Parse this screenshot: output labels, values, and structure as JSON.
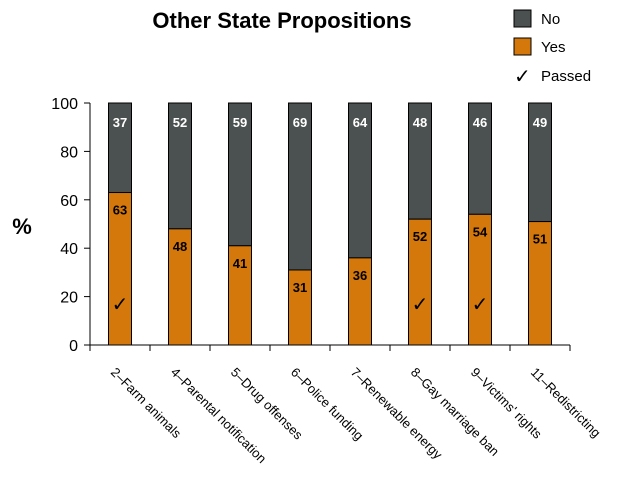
{
  "chart_data": {
    "type": "bar",
    "stacked": true,
    "title": "Other State Propositions",
    "ylabel": "%",
    "xlabel": "",
    "ylim": [
      0,
      100
    ],
    "yticks": [
      "0",
      "20",
      "40",
      "60",
      "80",
      "100"
    ],
    "categories": [
      "2–Farm animals",
      "4–Parental notification",
      "5–Drug offenses",
      "6–Police funding",
      "7–Renewable energy",
      "8–Gay marriage ban",
      "9–Victims' rights",
      "11–Redistricting"
    ],
    "series": [
      {
        "name": "Yes",
        "color": "#d4780b",
        "values": [
          63,
          48,
          41,
          31,
          36,
          52,
          54,
          51
        ]
      },
      {
        "name": "No",
        "color": "#4b5150",
        "values": [
          37,
          52,
          59,
          69,
          64,
          48,
          46,
          49
        ]
      }
    ],
    "passed": [
      true,
      false,
      false,
      false,
      false,
      true,
      true,
      false
    ],
    "legend": {
      "placement": "top-right",
      "items": [
        {
          "label": "No",
          "color": "#4b5150",
          "marker": "box"
        },
        {
          "label": "Yes",
          "color": "#d4780b",
          "marker": "box"
        },
        {
          "label": "Passed",
          "marker": "check",
          "symbol": "✓"
        }
      ]
    },
    "grid": false
  }
}
